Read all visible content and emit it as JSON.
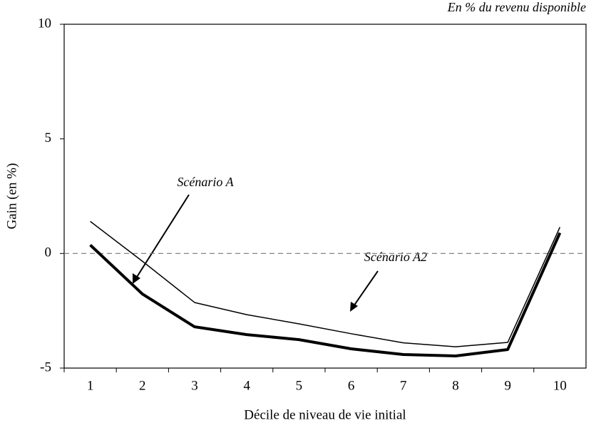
{
  "chart_data": {
    "type": "line",
    "subtitle": "En % du revenu disponible",
    "y_label": "Gain (en %)",
    "x_label": "Décile de niveau de vie initial",
    "categories": [
      1,
      2,
      3,
      4,
      5,
      6,
      7,
      8,
      9,
      10
    ],
    "series": [
      {
        "name": "Scénario A",
        "color": "#000000",
        "width": 4,
        "values": [
          0.37,
          -1.77,
          -3.2,
          -3.54,
          -3.76,
          -4.16,
          -4.41,
          -4.47,
          -4.19,
          0.9
        ]
      },
      {
        "name": "Scénario A2",
        "color": "#000000",
        "width": 1.5,
        "values": [
          1.4,
          -0.34,
          -2.14,
          -2.67,
          -3.07,
          -3.5,
          -3.9,
          -4.07,
          -3.88,
          1.15
        ]
      }
    ],
    "ylim": [
      -5,
      10
    ],
    "yticks": [
      -5,
      0,
      5,
      10
    ],
    "reference_line": 0
  }
}
